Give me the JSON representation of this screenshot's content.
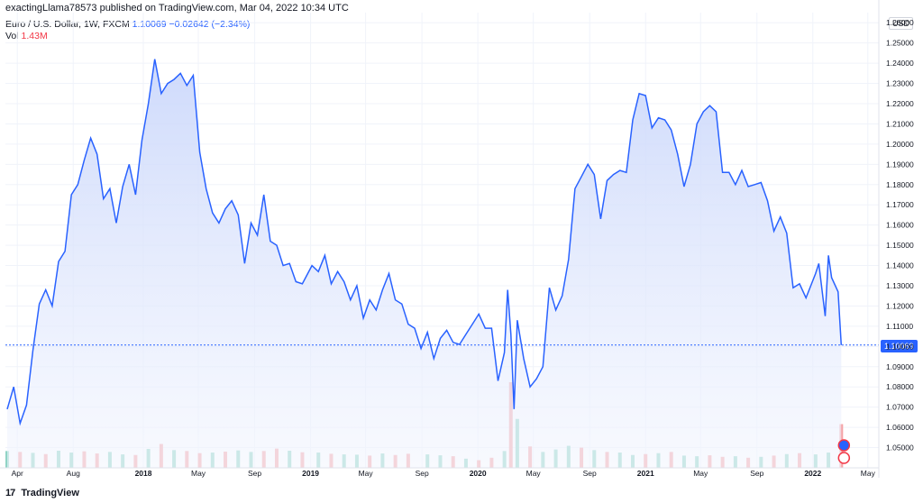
{
  "header": {
    "publisher": "exactingLlama78573 published on TradingView.com, Mar 04, 2022 10:34 UTC",
    "symbol": "Euro / U.S. Dollar, 1W, FXCM",
    "last_price": "1.10069",
    "change": "−0.02642 (−2.34%)",
    "vol_label": "Vol",
    "vol_value": "1.43M"
  },
  "currency_button": "USD",
  "footer": {
    "logo_mark": "17",
    "brand": "TradingView"
  },
  "colors": {
    "line": "#2962ff",
    "area_top": "#c9d6fb",
    "area_bottom": "#f3f6fe",
    "vol_up": "#8fd3c4",
    "vol_down": "#f5a3a6",
    "grid": "#f0f3fa",
    "badge": "#2962ff"
  },
  "chart_data": {
    "type": "area",
    "title": "Euro / U.S. Dollar, 1W, FXCM",
    "xlabel": "",
    "ylabel": "",
    "ylim": [
      1.04,
      1.265
    ],
    "y_ticks": [
      "1.05000",
      "1.06000",
      "1.07000",
      "1.08000",
      "1.09000",
      "1.10000",
      "1.11000",
      "1.12000",
      "1.13000",
      "1.14000",
      "1.15000",
      "1.16000",
      "1.17000",
      "1.18000",
      "1.19000",
      "1.20000",
      "1.21000",
      "1.22000",
      "1.23000",
      "1.24000",
      "1.25000",
      "1.26000"
    ],
    "x_ticks": [
      {
        "label": "Apr",
        "date": "2017-04-01"
      },
      {
        "label": "Aug",
        "date": "2017-08-01"
      },
      {
        "label": "2018",
        "date": "2018-01-01"
      },
      {
        "label": "May",
        "date": "2018-05-01"
      },
      {
        "label": "Sep",
        "date": "2018-09-01"
      },
      {
        "label": "2019",
        "date": "2019-01-01"
      },
      {
        "label": "May",
        "date": "2019-05-01"
      },
      {
        "label": "Sep",
        "date": "2019-09-01"
      },
      {
        "label": "2020",
        "date": "2020-01-01"
      },
      {
        "label": "May",
        "date": "2020-05-01"
      },
      {
        "label": "Sep",
        "date": "2020-09-01"
      },
      {
        "label": "2021",
        "date": "2021-01-01"
      },
      {
        "label": "May",
        "date": "2021-05-01"
      },
      {
        "label": "Sep",
        "date": "2021-09-01"
      },
      {
        "label": "2022",
        "date": "2022-01-01"
      },
      {
        "label": "May",
        "date": "2022-05-01"
      }
    ],
    "last_value": "1.10069",
    "series": [
      {
        "name": "Close",
        "points": [
          [
            "2017-03-10",
            1.069
          ],
          [
            "2017-03-24",
            1.08
          ],
          [
            "2017-04-07",
            1.062
          ],
          [
            "2017-04-21",
            1.071
          ],
          [
            "2017-05-05",
            1.098
          ],
          [
            "2017-05-19",
            1.121
          ],
          [
            "2017-06-02",
            1.128
          ],
          [
            "2017-06-16",
            1.12
          ],
          [
            "2017-06-30",
            1.142
          ],
          [
            "2017-07-14",
            1.147
          ],
          [
            "2017-07-28",
            1.175
          ],
          [
            "2017-08-11",
            1.18
          ],
          [
            "2017-08-25",
            1.192
          ],
          [
            "2017-09-08",
            1.203
          ],
          [
            "2017-09-22",
            1.195
          ],
          [
            "2017-10-06",
            1.173
          ],
          [
            "2017-10-20",
            1.178
          ],
          [
            "2017-11-03",
            1.161
          ],
          [
            "2017-11-17",
            1.179
          ],
          [
            "2017-12-01",
            1.19
          ],
          [
            "2017-12-15",
            1.175
          ],
          [
            "2017-12-29",
            1.202
          ],
          [
            "2018-01-12",
            1.22
          ],
          [
            "2018-01-26",
            1.242
          ],
          [
            "2018-02-09",
            1.225
          ],
          [
            "2018-02-23",
            1.23
          ],
          [
            "2018-03-09",
            1.232
          ],
          [
            "2018-03-23",
            1.235
          ],
          [
            "2018-04-06",
            1.229
          ],
          [
            "2018-04-20",
            1.234
          ],
          [
            "2018-05-04",
            1.196
          ],
          [
            "2018-05-18",
            1.178
          ],
          [
            "2018-06-01",
            1.166
          ],
          [
            "2018-06-15",
            1.161
          ],
          [
            "2018-06-29",
            1.168
          ],
          [
            "2018-07-13",
            1.172
          ],
          [
            "2018-07-27",
            1.165
          ],
          [
            "2018-08-10",
            1.141
          ],
          [
            "2018-08-24",
            1.161
          ],
          [
            "2018-09-07",
            1.155
          ],
          [
            "2018-09-21",
            1.175
          ],
          [
            "2018-10-05",
            1.152
          ],
          [
            "2018-10-19",
            1.15
          ],
          [
            "2018-11-02",
            1.14
          ],
          [
            "2018-11-16",
            1.141
          ],
          [
            "2018-11-30",
            1.132
          ],
          [
            "2018-12-14",
            1.131
          ],
          [
            "2019-01-04",
            1.14
          ],
          [
            "2019-01-18",
            1.137
          ],
          [
            "2019-02-01",
            1.145
          ],
          [
            "2019-02-15",
            1.131
          ],
          [
            "2019-03-01",
            1.137
          ],
          [
            "2019-03-15",
            1.132
          ],
          [
            "2019-03-29",
            1.123
          ],
          [
            "2019-04-12",
            1.13
          ],
          [
            "2019-04-26",
            1.114
          ],
          [
            "2019-05-10",
            1.123
          ],
          [
            "2019-05-24",
            1.118
          ],
          [
            "2019-06-07",
            1.128
          ],
          [
            "2019-06-21",
            1.136
          ],
          [
            "2019-07-05",
            1.123
          ],
          [
            "2019-07-19",
            1.121
          ],
          [
            "2019-08-02",
            1.111
          ],
          [
            "2019-08-16",
            1.109
          ],
          [
            "2019-08-30",
            1.099
          ],
          [
            "2019-09-13",
            1.107
          ],
          [
            "2019-09-27",
            1.094
          ],
          [
            "2019-10-11",
            1.104
          ],
          [
            "2019-10-25",
            1.108
          ],
          [
            "2019-11-08",
            1.102
          ],
          [
            "2019-11-22",
            1.101
          ],
          [
            "2019-12-06",
            1.106
          ],
          [
            "2019-12-20",
            1.111
          ],
          [
            "2020-01-03",
            1.116
          ],
          [
            "2020-01-17",
            1.109
          ],
          [
            "2020-01-31",
            1.109
          ],
          [
            "2020-02-14",
            1.083
          ],
          [
            "2020-02-28",
            1.097
          ],
          [
            "2020-03-06",
            1.128
          ],
          [
            "2020-03-13",
            1.106
          ],
          [
            "2020-03-20",
            1.069
          ],
          [
            "2020-03-27",
            1.113
          ],
          [
            "2020-04-10",
            1.094
          ],
          [
            "2020-04-24",
            1.08
          ],
          [
            "2020-05-08",
            1.084
          ],
          [
            "2020-05-22",
            1.09
          ],
          [
            "2020-06-05",
            1.129
          ],
          [
            "2020-06-19",
            1.118
          ],
          [
            "2020-07-03",
            1.125
          ],
          [
            "2020-07-17",
            1.143
          ],
          [
            "2020-07-31",
            1.178
          ],
          [
            "2020-08-14",
            1.184
          ],
          [
            "2020-08-28",
            1.19
          ],
          [
            "2020-09-11",
            1.185
          ],
          [
            "2020-09-25",
            1.163
          ],
          [
            "2020-10-09",
            1.182
          ],
          [
            "2020-10-23",
            1.185
          ],
          [
            "2020-11-06",
            1.187
          ],
          [
            "2020-11-20",
            1.186
          ],
          [
            "2020-12-04",
            1.212
          ],
          [
            "2020-12-18",
            1.225
          ],
          [
            "2021-01-01",
            1.224
          ],
          [
            "2021-01-15",
            1.208
          ],
          [
            "2021-01-29",
            1.213
          ],
          [
            "2021-02-12",
            1.212
          ],
          [
            "2021-02-26",
            1.207
          ],
          [
            "2021-03-12",
            1.195
          ],
          [
            "2021-03-26",
            1.179
          ],
          [
            "2021-04-09",
            1.19
          ],
          [
            "2021-04-23",
            1.21
          ],
          [
            "2021-05-07",
            1.216
          ],
          [
            "2021-05-21",
            1.219
          ],
          [
            "2021-06-04",
            1.216
          ],
          [
            "2021-06-18",
            1.186
          ],
          [
            "2021-07-02",
            1.186
          ],
          [
            "2021-07-16",
            1.18
          ],
          [
            "2021-07-30",
            1.187
          ],
          [
            "2021-08-13",
            1.179
          ],
          [
            "2021-08-27",
            1.18
          ],
          [
            "2021-09-10",
            1.181
          ],
          [
            "2021-09-24",
            1.172
          ],
          [
            "2021-10-08",
            1.157
          ],
          [
            "2021-10-22",
            1.164
          ],
          [
            "2021-11-05",
            1.156
          ],
          [
            "2021-11-19",
            1.129
          ],
          [
            "2021-12-03",
            1.131
          ],
          [
            "2021-12-17",
            1.124
          ],
          [
            "2022-01-07",
            1.136
          ],
          [
            "2022-01-14",
            1.141
          ],
          [
            "2022-01-28",
            1.115
          ],
          [
            "2022-02-04",
            1.145
          ],
          [
            "2022-02-11",
            1.134
          ],
          [
            "2022-02-25",
            1.127
          ],
          [
            "2022-03-04",
            1.1007
          ]
        ]
      },
      {
        "name": "Vol",
        "note_dir": "up=1, down=0",
        "points": [
          [
            "2017-03-10",
            0.55,
            1
          ],
          [
            "2017-04-07",
            0.52,
            0
          ],
          [
            "2017-05-05",
            0.49,
            1
          ],
          [
            "2017-06-02",
            0.45,
            0
          ],
          [
            "2017-06-30",
            0.56,
            1
          ],
          [
            "2017-07-28",
            0.5,
            1
          ],
          [
            "2017-08-25",
            0.54,
            0
          ],
          [
            "2017-09-22",
            0.47,
            0
          ],
          [
            "2017-10-20",
            0.52,
            1
          ],
          [
            "2017-11-17",
            0.44,
            1
          ],
          [
            "2017-12-15",
            0.42,
            0
          ],
          [
            "2018-01-12",
            0.62,
            1
          ],
          [
            "2018-02-09",
            0.78,
            0
          ],
          [
            "2018-03-09",
            0.58,
            1
          ],
          [
            "2018-04-06",
            0.55,
            0
          ],
          [
            "2018-05-04",
            0.48,
            0
          ],
          [
            "2018-06-01",
            0.5,
            1
          ],
          [
            "2018-06-29",
            0.53,
            0
          ],
          [
            "2018-07-27",
            0.57,
            1
          ],
          [
            "2018-08-24",
            0.52,
            1
          ],
          [
            "2018-09-21",
            0.55,
            0
          ],
          [
            "2018-10-19",
            0.63,
            0
          ],
          [
            "2018-11-16",
            0.56,
            1
          ],
          [
            "2018-12-14",
            0.51,
            0
          ],
          [
            "2019-01-18",
            0.5,
            1
          ],
          [
            "2019-02-15",
            0.46,
            0
          ],
          [
            "2019-03-15",
            0.44,
            1
          ],
          [
            "2019-04-12",
            0.43,
            1
          ],
          [
            "2019-05-10",
            0.4,
            0
          ],
          [
            "2019-06-07",
            0.47,
            1
          ],
          [
            "2019-07-05",
            0.42,
            0
          ],
          [
            "2019-08-02",
            0.46,
            0
          ],
          [
            "2019-09-13",
            0.44,
            1
          ],
          [
            "2019-10-11",
            0.41,
            1
          ],
          [
            "2019-11-08",
            0.38,
            0
          ],
          [
            "2019-12-06",
            0.3,
            1
          ],
          [
            "2020-01-03",
            0.25,
            0
          ],
          [
            "2020-01-31",
            0.33,
            0
          ],
          [
            "2020-02-28",
            0.55,
            1
          ],
          [
            "2020-03-13",
            2.8,
            0
          ],
          [
            "2020-03-27",
            1.6,
            1
          ],
          [
            "2020-04-24",
            0.7,
            0
          ],
          [
            "2020-05-22",
            0.52,
            1
          ],
          [
            "2020-06-19",
            0.6,
            1
          ],
          [
            "2020-07-17",
            0.72,
            1
          ],
          [
            "2020-08-14",
            0.66,
            0
          ],
          [
            "2020-09-11",
            0.58,
            1
          ],
          [
            "2020-10-09",
            0.52,
            0
          ],
          [
            "2020-11-06",
            0.5,
            1
          ],
          [
            "2020-12-04",
            0.42,
            1
          ],
          [
            "2021-01-01",
            0.45,
            0
          ],
          [
            "2021-01-29",
            0.48,
            1
          ],
          [
            "2021-02-26",
            0.52,
            0
          ],
          [
            "2021-03-26",
            0.4,
            1
          ],
          [
            "2021-04-23",
            0.38,
            1
          ],
          [
            "2021-05-21",
            0.41,
            0
          ],
          [
            "2021-06-18",
            0.36,
            0
          ],
          [
            "2021-07-16",
            0.38,
            1
          ],
          [
            "2021-08-13",
            0.33,
            0
          ],
          [
            "2021-09-10",
            0.36,
            1
          ],
          [
            "2021-10-08",
            0.4,
            0
          ],
          [
            "2021-11-05",
            0.45,
            1
          ],
          [
            "2021-12-03",
            0.48,
            0
          ],
          [
            "2022-01-07",
            0.44,
            1
          ],
          [
            "2022-02-04",
            0.5,
            1
          ],
          [
            "2022-03-04",
            1.43,
            0
          ]
        ]
      }
    ]
  }
}
